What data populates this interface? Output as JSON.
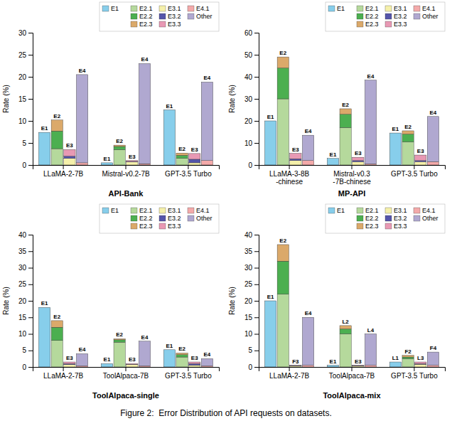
{
  "title": "Figure 2:  Error Distribution of API requests on datasets.",
  "chart_data": [
    {
      "type": "bar",
      "stacked": true,
      "legend": "upper right",
      "xlabel": "API-Bank",
      "ylabel": "Rate (%)",
      "categories": [
        "LLaMA-2-7B",
        "Mistral-v0.2-7B",
        "GPT-3.5 Turbo"
      ],
      "ylim": [
        0,
        30
      ],
      "yticks": [
        0,
        5,
        10,
        15,
        20,
        25,
        30
      ],
      "bars": [
        {
          "annotations": [
            "E1",
            "E1",
            "E1"
          ],
          "series": [
            {
              "name": "E1",
              "color": "#87CEEB",
              "values": [
                7.4,
                0.5,
                12.5
              ]
            }
          ]
        },
        {
          "annotations": [
            "E2",
            "E2",
            "E2"
          ],
          "series": [
            {
              "name": "E2.1",
              "color": "#B5D99C",
              "values": [
                3.7,
                3.5,
                1.5
              ]
            },
            {
              "name": "E2.2",
              "color": "#4CAF50",
              "values": [
                4.0,
                0.7,
                0.7
              ]
            },
            {
              "name": "E2.3",
              "color": "#DBA96A",
              "values": [
                2.5,
                0.3,
                0.5
              ]
            }
          ]
        },
        {
          "annotations": [
            "E3",
            "E3",
            "E3"
          ],
          "series": [
            {
              "name": "E3.1",
              "color": "#F5F0AA",
              "values": [
                1.5,
                0.7,
                0.5
              ]
            },
            {
              "name": "E3.2",
              "color": "#5555AA",
              "values": [
                0.5,
                0.1,
                0.8
              ]
            },
            {
              "name": "E3.3",
              "color": "#E899B4",
              "values": [
                1.5,
                0.2,
                1.3
              ]
            }
          ]
        },
        {
          "annotations": [
            "E4",
            "E4",
            "E4"
          ],
          "series": [
            {
              "name": "E4.1",
              "color": "#F4AAAA",
              "values": [
                0.5,
                0.3,
                1.0
              ]
            },
            {
              "name": "Other",
              "color": "#B0A8D0",
              "values": [
                20.0,
                22.7,
                17.8
              ]
            }
          ]
        }
      ]
    },
    {
      "type": "bar",
      "stacked": true,
      "legend": "upper right",
      "xlabel": "MP-API",
      "ylabel": "Rate (%)",
      "categories": [
        "LLaMA-3-8B\n-chinese",
        "Mistral-v0.3\n-7B-chinese",
        "GPT-3.5 Turbo"
      ],
      "ylim": [
        0,
        60
      ],
      "yticks": [
        0,
        10,
        20,
        30,
        40,
        50,
        60
      ],
      "bars": [
        {
          "annotations": [
            "E1",
            "E1",
            "E1"
          ],
          "series": [
            {
              "name": "E1",
              "color": "#87CEEB",
              "values": [
                20.0,
                3.0,
                14.5
              ]
            }
          ]
        },
        {
          "annotations": [
            "E2",
            "E2",
            "E2"
          ],
          "series": [
            {
              "name": "E2.1",
              "color": "#B5D99C",
              "values": [
                30.0,
                17.0,
                10.5
              ]
            },
            {
              "name": "E2.2",
              "color": "#4CAF50",
              "values": [
                14.0,
                6.0,
                3.5
              ]
            },
            {
              "name": "E2.3",
              "color": "#DBA96A",
              "values": [
                5.0,
                2.5,
                1.5
              ]
            }
          ]
        },
        {
          "annotations": [
            "E3",
            "E3",
            "E3"
          ],
          "series": [
            {
              "name": "E3.1",
              "color": "#F5F0AA",
              "values": [
                2.0,
                1.5,
                1.5
              ]
            },
            {
              "name": "E3.2",
              "color": "#5555AA",
              "values": [
                0.8,
                0.5,
                0.5
              ]
            },
            {
              "name": "E3.3",
              "color": "#E899B4",
              "values": [
                2.5,
                1.5,
                2.5
              ]
            }
          ]
        },
        {
          "annotations": [
            "E4",
            "E4",
            "E4"
          ],
          "series": [
            {
              "name": "E4.1",
              "color": "#F4AAAA",
              "values": [
                2.0,
                0.5,
                1.5
              ]
            },
            {
              "name": "Other",
              "color": "#B0A8D0",
              "values": [
                11.5,
                38.0,
                20.5
              ]
            }
          ]
        }
      ]
    },
    {
      "type": "bar",
      "stacked": true,
      "legend": "upper right",
      "xlabel": "ToolAlpaca-single",
      "ylabel": "Rate (%)",
      "categories": [
        "LLaMA-2-7B",
        "ToolAlpaca-7B",
        "GPT-3.5 Turbo"
      ],
      "ylim": [
        0,
        40
      ],
      "yticks": [
        0,
        5,
        10,
        15,
        20,
        25,
        30,
        35,
        40
      ],
      "bars": [
        {
          "annotations": [
            "E1",
            "E1",
            "E1"
          ],
          "series": [
            {
              "name": "E1",
              "color": "#87CEEB",
              "values": [
                18.0,
                1.0,
                5.2
              ]
            }
          ]
        },
        {
          "annotations": [
            "E2",
            "E2",
            "E2"
          ],
          "series": [
            {
              "name": "E2.1",
              "color": "#B5D99C",
              "values": [
                8.0,
                7.5,
                3.0
              ]
            },
            {
              "name": "E2.2",
              "color": "#4CAF50",
              "values": [
                4.0,
                0.7,
                0.7
              ]
            },
            {
              "name": "E2.3",
              "color": "#DBA96A",
              "values": [
                2.0,
                0.3,
                0.5
              ]
            }
          ]
        },
        {
          "annotations": [
            "E3",
            "E3",
            "E3"
          ],
          "series": [
            {
              "name": "E3.1",
              "color": "#F5F0AA",
              "values": [
                0.7,
                0.7,
                0.5
              ]
            },
            {
              "name": "E3.2",
              "color": "#5555AA",
              "values": [
                0.3,
                0.1,
                0.5
              ]
            },
            {
              "name": "E3.3",
              "color": "#E899B4",
              "values": [
                0.5,
                0.2,
                0.5
              ]
            }
          ]
        },
        {
          "annotations": [
            "E4",
            "E4",
            "E4"
          ],
          "series": [
            {
              "name": "E4.1",
              "color": "#F4AAAA",
              "values": [
                0.3,
                0.3,
                0.3
              ]
            },
            {
              "name": "Other",
              "color": "#B0A8D0",
              "values": [
                3.7,
                7.5,
                2.2
              ]
            }
          ]
        }
      ]
    },
    {
      "type": "bar",
      "stacked": true,
      "legend": "upper right",
      "xlabel": "ToolAlpaca-mix",
      "ylabel": "Rate (%)",
      "categories": [
        "LLaMA-2-7B",
        "ToolAlpaca-7B",
        "GPT-3.5 Turbo"
      ],
      "ylim": [
        0,
        40
      ],
      "yticks": [
        0,
        5,
        10,
        15,
        20,
        25,
        30,
        35,
        40
      ],
      "bars": [
        {
          "annotations": [
            "E1",
            "E1",
            "L1"
          ],
          "series": [
            {
              "name": "E1",
              "color": "#87CEEB",
              "values": [
                20.0,
                0.5,
                1.5
              ]
            }
          ]
        },
        {
          "annotations": [
            "E2",
            "L2",
            "F2"
          ],
          "series": [
            {
              "name": "E2.1",
              "color": "#B5D99C",
              "values": [
                22.0,
                10.0,
                2.5
              ]
            },
            {
              "name": "E2.2",
              "color": "#4CAF50",
              "values": [
                10.0,
                1.5,
                0.5
              ]
            },
            {
              "name": "E2.3",
              "color": "#DBA96A",
              "values": [
                5.0,
                1.0,
                0.5
              ]
            }
          ]
        },
        {
          "annotations": [
            "F3",
            "E3",
            "L3"
          ],
          "series": [
            {
              "name": "E3.1",
              "color": "#F5F0AA",
              "values": [
                0.3,
                0.3,
                0.8
              ]
            },
            {
              "name": "E3.2",
              "color": "#5555AA",
              "values": [
                0.1,
                0.1,
                0.2
              ]
            },
            {
              "name": "E3.3",
              "color": "#E899B4",
              "values": [
                0.1,
                0.1,
                0.5
              ]
            }
          ]
        },
        {
          "annotations": [
            "E4",
            "L4",
            "F4"
          ],
          "series": [
            {
              "name": "E4.1",
              "color": "#F4AAAA",
              "values": [
                0.5,
                0.5,
                0.5
              ]
            },
            {
              "name": "Other",
              "color": "#B0A8D0",
              "values": [
                14.5,
                9.5,
                4.0
              ]
            }
          ]
        }
      ]
    }
  ]
}
